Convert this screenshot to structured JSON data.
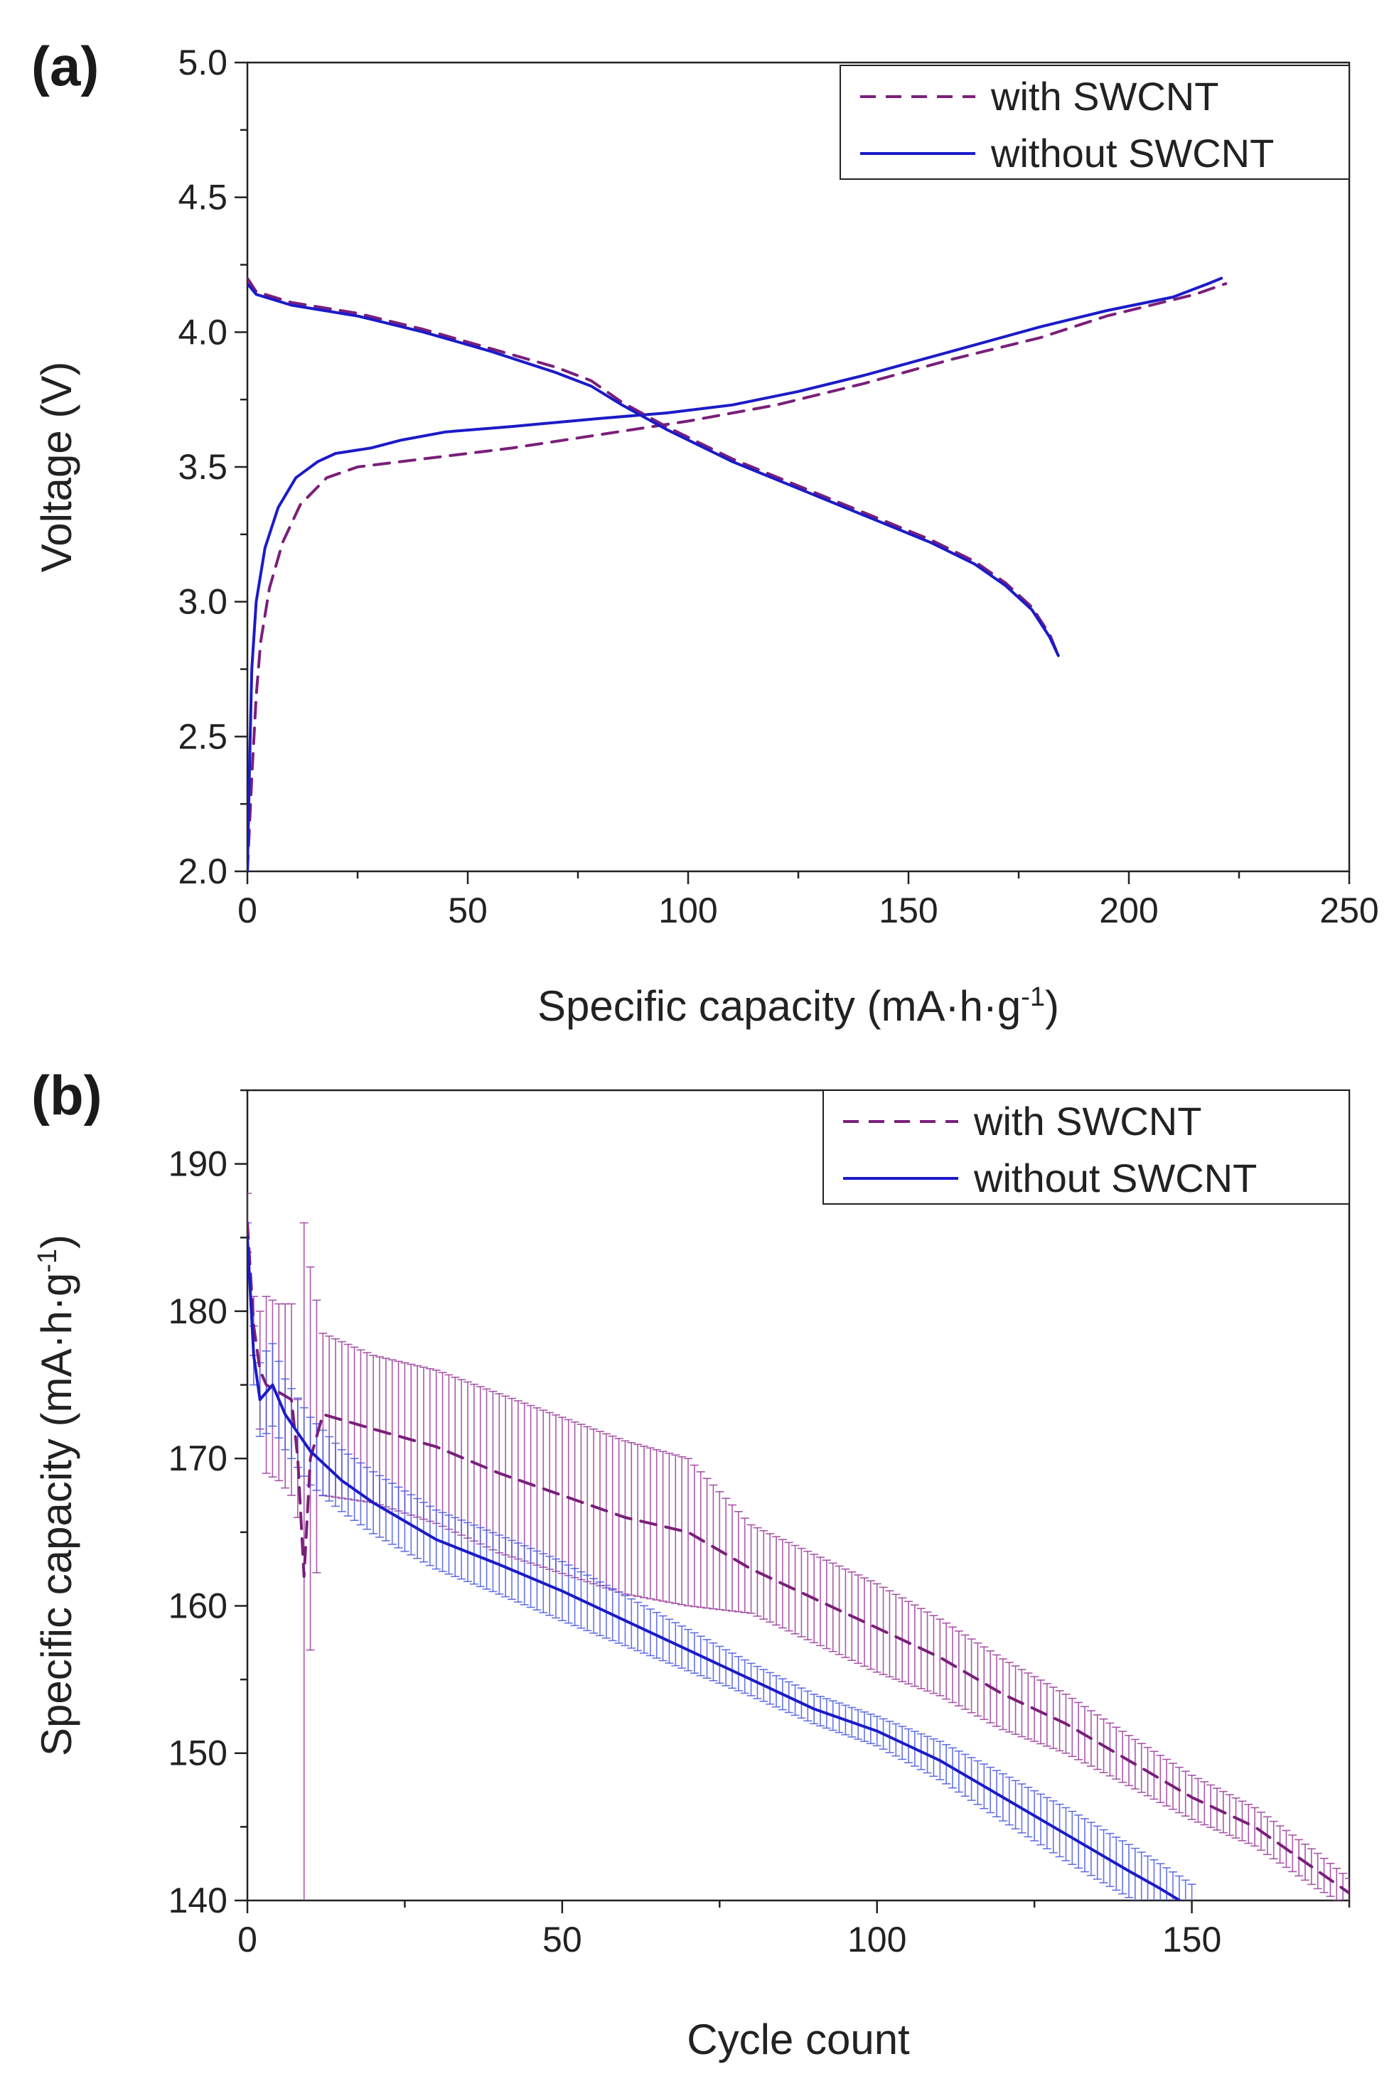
{
  "colors": {
    "with": "#7a1f7a",
    "without": "#1b1bc8",
    "with_err": "#9a3c9a",
    "without_err": "#4a5ae0",
    "axis": "#222222"
  },
  "chart_data": [
    {
      "id": "a",
      "type": "line",
      "panel_label": "(a)",
      "xlabel": "Specific capacity (mA·h·g",
      "xlabel_sup": "-1",
      "xlabel_tail": ")",
      "ylabel": "Voltage (V)",
      "xlim": [
        0,
        250
      ],
      "ylim": [
        2.0,
        5.0
      ],
      "xticks": [
        0,
        50,
        100,
        150,
        200,
        250
      ],
      "xtick_labels": [
        "0",
        "50",
        "100",
        "150",
        "200",
        "250"
      ],
      "yticks": [
        2.0,
        2.5,
        3.0,
        3.5,
        4.0,
        4.5,
        5.0
      ],
      "ytick_labels": [
        "2.0",
        "2.5",
        "3.0",
        "3.5",
        "4.0",
        "4.5",
        "5.0"
      ],
      "legend": {
        "position": "top-right",
        "entries": [
          "with SWCNT",
          "without SWCNT"
        ]
      },
      "series": [
        {
          "name": "with SWCNT",
          "role": "charge",
          "style": "dashed",
          "color_key": "with",
          "points": [
            [
              0,
              2.0
            ],
            [
              1,
              2.35
            ],
            [
              2,
              2.65
            ],
            [
              3,
              2.85
            ],
            [
              5,
              3.05
            ],
            [
              8,
              3.22
            ],
            [
              12,
              3.36
            ],
            [
              18,
              3.46
            ],
            [
              25,
              3.5
            ],
            [
              40,
              3.53
            ],
            [
              60,
              3.57
            ],
            [
              80,
              3.62
            ],
            [
              100,
              3.67
            ],
            [
              120,
              3.73
            ],
            [
              140,
              3.81
            ],
            [
              160,
              3.9
            ],
            [
              180,
              3.98
            ],
            [
              195,
              4.06
            ],
            [
              205,
              4.1
            ],
            [
              215,
              4.14
            ],
            [
              222,
              4.18
            ]
          ]
        },
        {
          "name": "without SWCNT",
          "role": "charge",
          "style": "solid",
          "color_key": "without",
          "points": [
            [
              0,
              2.0
            ],
            [
              0.5,
              2.4
            ],
            [
              1,
              2.75
            ],
            [
              2,
              3.0
            ],
            [
              4,
              3.2
            ],
            [
              7,
              3.35
            ],
            [
              11,
              3.46
            ],
            [
              16,
              3.52
            ],
            [
              20,
              3.55
            ],
            [
              28,
              3.57
            ],
            [
              35,
              3.6
            ],
            [
              45,
              3.63
            ],
            [
              60,
              3.65
            ],
            [
              80,
              3.68
            ],
            [
              95,
              3.7
            ],
            [
              110,
              3.73
            ],
            [
              125,
              3.78
            ],
            [
              140,
              3.84
            ],
            [
              160,
              3.93
            ],
            [
              180,
              4.02
            ],
            [
              195,
              4.08
            ],
            [
              210,
              4.13
            ],
            [
              218,
              4.18
            ],
            [
              221,
              4.2
            ]
          ]
        },
        {
          "name": "with SWCNT",
          "role": "discharge",
          "style": "dashed",
          "color_key": "with",
          "points": [
            [
              0,
              4.2
            ],
            [
              2,
              4.15
            ],
            [
              10,
              4.11
            ],
            [
              25,
              4.07
            ],
            [
              40,
              4.01
            ],
            [
              55,
              3.94
            ],
            [
              70,
              3.87
            ],
            [
              78,
              3.82
            ],
            [
              85,
              3.74
            ],
            [
              95,
              3.65
            ],
            [
              110,
              3.53
            ],
            [
              125,
              3.43
            ],
            [
              140,
              3.33
            ],
            [
              155,
              3.23
            ],
            [
              165,
              3.15
            ],
            [
              172,
              3.07
            ],
            [
              178,
              2.98
            ],
            [
              182,
              2.88
            ],
            [
              184,
              2.8
            ]
          ]
        },
        {
          "name": "without SWCNT",
          "role": "discharge",
          "style": "solid",
          "color_key": "without",
          "points": [
            [
              0,
              4.18
            ],
            [
              2,
              4.14
            ],
            [
              10,
              4.1
            ],
            [
              25,
              4.06
            ],
            [
              40,
              4.0
            ],
            [
              55,
              3.93
            ],
            [
              70,
              3.85
            ],
            [
              78,
              3.8
            ],
            [
              85,
              3.73
            ],
            [
              95,
              3.64
            ],
            [
              110,
              3.52
            ],
            [
              125,
              3.42
            ],
            [
              140,
              3.32
            ],
            [
              155,
              3.22
            ],
            [
              165,
              3.14
            ],
            [
              172,
              3.06
            ],
            [
              178,
              2.97
            ],
            [
              182,
              2.87
            ],
            [
              184,
              2.8
            ]
          ]
        }
      ]
    },
    {
      "id": "b",
      "type": "line",
      "panel_label": "(b)",
      "xlabel": "Cycle count",
      "ylabel": "Specific capacity (mA·h·g",
      "ylabel_sup": "-1",
      "ylabel_tail": ")",
      "xlim": [
        0,
        175
      ],
      "ylim": [
        140,
        195
      ],
      "xticks": [
        0,
        50,
        100,
        150
      ],
      "xtick_labels": [
        "0",
        "50",
        "100",
        "150"
      ],
      "yticks": [
        140,
        150,
        160,
        170,
        180,
        190
      ],
      "ytick_labels": [
        "140",
        "150",
        "160",
        "170",
        "180",
        "190"
      ],
      "legend": {
        "position": "top-right",
        "entries": [
          "with SWCNT",
          "without SWCNT"
        ]
      },
      "series": [
        {
          "name": "with SWCNT",
          "style": "dashed",
          "color_key": "with",
          "err_color_key": "with_err",
          "points": [
            [
              0,
              186
            ],
            [
              1,
              179
            ],
            [
              2,
              176
            ],
            [
              3,
              175
            ],
            [
              5,
              174.5
            ],
            [
              7,
              174
            ],
            [
              8,
              170
            ],
            [
              9,
              162
            ],
            [
              10,
              170
            ],
            [
              12,
              173
            ],
            [
              20,
              172
            ],
            [
              30,
              170.8
            ],
            [
              40,
              169
            ],
            [
              50,
              167.5
            ],
            [
              60,
              166
            ],
            [
              70,
              165
            ],
            [
              80,
              162.5
            ],
            [
              90,
              160.5
            ],
            [
              100,
              158.5
            ],
            [
              110,
              156.5
            ],
            [
              120,
              154
            ],
            [
              130,
              152
            ],
            [
              140,
              149.5
            ],
            [
              150,
              147
            ],
            [
              160,
              145
            ],
            [
              170,
              142
            ],
            [
              175,
              140.5
            ]
          ],
          "error": [
            [
              0,
              2
            ],
            [
              1,
              2
            ],
            [
              2,
              4
            ],
            [
              3,
              6
            ],
            [
              5,
              6
            ],
            [
              7,
              6.5
            ],
            [
              8,
              4
            ],
            [
              9,
              24
            ],
            [
              10,
              13
            ],
            [
              12,
              5.5
            ],
            [
              20,
              5
            ],
            [
              30,
              5.2
            ],
            [
              40,
              5.4
            ],
            [
              50,
              5.3
            ],
            [
              60,
              5.2
            ],
            [
              70,
              5
            ],
            [
              80,
              3
            ],
            [
              90,
              3
            ],
            [
              100,
              3
            ],
            [
              110,
              2.6
            ],
            [
              120,
              2.4
            ],
            [
              130,
              2
            ],
            [
              140,
              1.7
            ],
            [
              150,
              1.5
            ],
            [
              160,
              1.3
            ],
            [
              170,
              1.2
            ],
            [
              175,
              1
            ]
          ]
        },
        {
          "name": "without SWCNT",
          "style": "solid",
          "color_key": "without",
          "err_color_key": "without_err",
          "points": [
            [
              0,
              185
            ],
            [
              1,
              177
            ],
            [
              2,
              174
            ],
            [
              3,
              174.5
            ],
            [
              4,
              175
            ],
            [
              6,
              173
            ],
            [
              10,
              170.5
            ],
            [
              15,
              168.5
            ],
            [
              20,
              167
            ],
            [
              30,
              164.5
            ],
            [
              40,
              162.8
            ],
            [
              50,
              161
            ],
            [
              60,
              159
            ],
            [
              70,
              157
            ],
            [
              80,
              155
            ],
            [
              90,
              153
            ],
            [
              100,
              151.5
            ],
            [
              110,
              149.5
            ],
            [
              120,
              147
            ],
            [
              130,
              144.5
            ],
            [
              140,
              142
            ],
            [
              145,
              140.8
            ],
            [
              150,
              139.5
            ]
          ],
          "error": [
            [
              0,
              1
            ],
            [
              1,
              2
            ],
            [
              2,
              2.5
            ],
            [
              3,
              2.8
            ],
            [
              4,
              2.8
            ],
            [
              6,
              2.4
            ],
            [
              10,
              2.3
            ],
            [
              15,
              2.1
            ],
            [
              20,
              2.1
            ],
            [
              30,
              2
            ],
            [
              40,
              2
            ],
            [
              50,
              2
            ],
            [
              60,
              1.7
            ],
            [
              70,
              1.4
            ],
            [
              80,
              1.1
            ],
            [
              90,
              1
            ],
            [
              100,
              1
            ],
            [
              110,
              1.3
            ],
            [
              120,
              1.6
            ],
            [
              130,
              1.8
            ],
            [
              140,
              1.8
            ],
            [
              145,
              1.7
            ],
            [
              150,
              1.6
            ]
          ]
        }
      ]
    }
  ]
}
